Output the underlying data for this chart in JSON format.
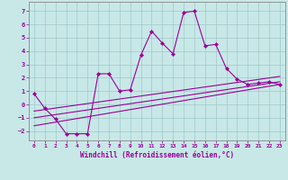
{
  "xlabel": "Windchill (Refroidissement éolien,°C)",
  "bg_color": "#c8e8e8",
  "grid_color": "#a0c8c8",
  "line_color": "#990099",
  "spine_color": "#888888",
  "xlim": [
    -0.5,
    23.5
  ],
  "ylim": [
    -2.7,
    7.7
  ],
  "xticks": [
    0,
    1,
    2,
    3,
    4,
    5,
    6,
    7,
    8,
    9,
    10,
    11,
    12,
    13,
    14,
    15,
    16,
    17,
    18,
    19,
    20,
    21,
    22,
    23
  ],
  "yticks": [
    -2,
    -1,
    0,
    1,
    2,
    3,
    4,
    5,
    6,
    7
  ],
  "main_series_x": [
    0,
    1,
    2,
    3,
    4,
    5,
    6,
    7,
    8,
    9,
    10,
    11,
    12,
    13,
    14,
    15,
    16,
    17,
    18,
    19,
    20,
    21,
    22,
    23
  ],
  "main_series_y": [
    0.8,
    -0.3,
    -1.1,
    -2.2,
    -2.2,
    -2.2,
    2.3,
    2.3,
    1.0,
    1.1,
    3.7,
    5.5,
    4.6,
    3.8,
    6.9,
    7.0,
    4.4,
    4.5,
    2.7,
    1.9,
    1.5,
    1.6,
    1.7,
    1.5
  ],
  "lines": [
    {
      "x": [
        0,
        23
      ],
      "y": [
        -0.5,
        2.1
      ]
    },
    {
      "x": [
        0,
        23
      ],
      "y": [
        -1.0,
        1.7
      ]
    },
    {
      "x": [
        0,
        23
      ],
      "y": [
        -1.6,
        1.5
      ]
    }
  ],
  "tick_fontsize": 4.5,
  "xlabel_fontsize": 5.5,
  "marker_size": 2.2,
  "linewidth": 0.8
}
